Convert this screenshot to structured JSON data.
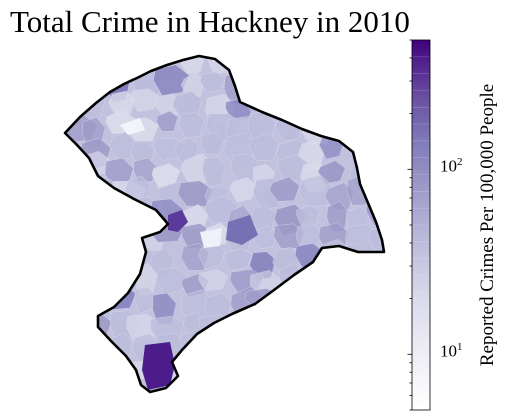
{
  "title": "Total Crime in Hackney in 2010",
  "colorbar": {
    "label": "Reported Crimes Per 100,000 People",
    "scale": "log",
    "range": [
      5,
      500
    ],
    "ticks": [
      {
        "base": "10",
        "exp": "1",
        "value": 10
      },
      {
        "base": "10",
        "exp": "2",
        "value": 100
      }
    ],
    "colors": [
      "#ffffff",
      "#efedf5",
      "#dadaeb",
      "#bcbddc",
      "#9e9ac8",
      "#807dba",
      "#6a51a3",
      "#54278f",
      "#3f007d"
    ]
  },
  "map": {
    "region": "Hackney",
    "outline_color": "#000000",
    "levels": [
      30,
      40,
      55,
      70,
      90,
      110,
      140,
      200,
      350
    ]
  }
}
